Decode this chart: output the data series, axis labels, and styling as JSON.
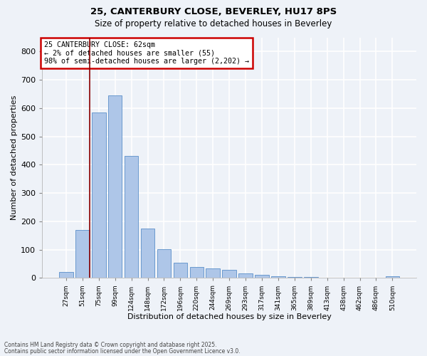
{
  "title1": "25, CANTERBURY CLOSE, BEVERLEY, HU17 8PS",
  "title2": "Size of property relative to detached houses in Beverley",
  "xlabel": "Distribution of detached houses by size in Beverley",
  "ylabel": "Number of detached properties",
  "bar_labels": [
    "27sqm",
    "51sqm",
    "75sqm",
    "99sqm",
    "124sqm",
    "148sqm",
    "172sqm",
    "196sqm",
    "220sqm",
    "244sqm",
    "269sqm",
    "293sqm",
    "317sqm",
    "341sqm",
    "365sqm",
    "389sqm",
    "413sqm",
    "438sqm",
    "462sqm",
    "486sqm",
    "510sqm"
  ],
  "bar_values": [
    20,
    170,
    585,
    645,
    430,
    175,
    102,
    55,
    40,
    35,
    28,
    15,
    12,
    5,
    4,
    3,
    2,
    1,
    1,
    0,
    7
  ],
  "bar_color": "#aec6e8",
  "bar_edge_color": "#5b8fc9",
  "vline_x": 1.45,
  "vline_color": "#8b0000",
  "annotation_text": "25 CANTERBURY CLOSE: 62sqm\n← 2% of detached houses are smaller (55)\n98% of semi-detached houses are larger (2,202) →",
  "annotation_box_color": "white",
  "annotation_box_edge_color": "#cc0000",
  "ylim": [
    0,
    850
  ],
  "yticks": [
    0,
    100,
    200,
    300,
    400,
    500,
    600,
    700,
    800
  ],
  "background_color": "#eef2f8",
  "grid_color": "white",
  "footnote1": "Contains HM Land Registry data © Crown copyright and database right 2025.",
  "footnote2": "Contains public sector information licensed under the Open Government Licence v3.0."
}
